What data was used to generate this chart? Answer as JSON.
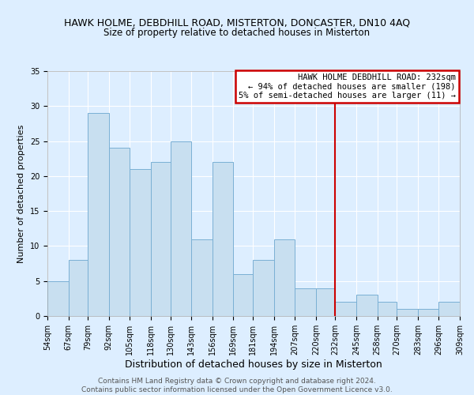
{
  "title": "HAWK HOLME, DEBDHILL ROAD, MISTERTON, DONCASTER, DN10 4AQ",
  "subtitle": "Size of property relative to detached houses in Misterton",
  "xlabel": "Distribution of detached houses by size in Misterton",
  "ylabel": "Number of detached properties",
  "bins": [
    54,
    67,
    79,
    92,
    105,
    118,
    130,
    143,
    156,
    169,
    181,
    194,
    207,
    220,
    232,
    245,
    258,
    270,
    283,
    296,
    309
  ],
  "counts": [
    5,
    8,
    29,
    24,
    21,
    22,
    25,
    11,
    22,
    6,
    8,
    11,
    4,
    4,
    2,
    3,
    2,
    1,
    1,
    2
  ],
  "bar_color": "#c8dff0",
  "bar_edge_color": "#7ab0d4",
  "reference_line_x": 232,
  "reference_line_color": "#cc0000",
  "ylim": [
    0,
    35
  ],
  "yticks": [
    0,
    5,
    10,
    15,
    20,
    25,
    30,
    35
  ],
  "legend_title": "HAWK HOLME DEBDHILL ROAD: 232sqm",
  "legend_line1": "← 94% of detached houses are smaller (198)",
  "legend_line2": "5% of semi-detached houses are larger (11) →",
  "legend_box_facecolor": "#ffffff",
  "legend_box_edgecolor": "#cc0000",
  "fig_background": "#ddeeff",
  "plot_background": "#ddeeff",
  "grid_color": "#ffffff",
  "title_fontsize": 9.0,
  "subtitle_fontsize": 8.5,
  "xlabel_fontsize": 9.0,
  "ylabel_fontsize": 8.0,
  "tick_fontsize": 7.0,
  "legend_fontsize": 7.5,
  "footer_line1": "Contains HM Land Registry data © Crown copyright and database right 2024.",
  "footer_line2": "Contains public sector information licensed under the Open Government Licence v3.0.",
  "footer_fontsize": 6.5
}
